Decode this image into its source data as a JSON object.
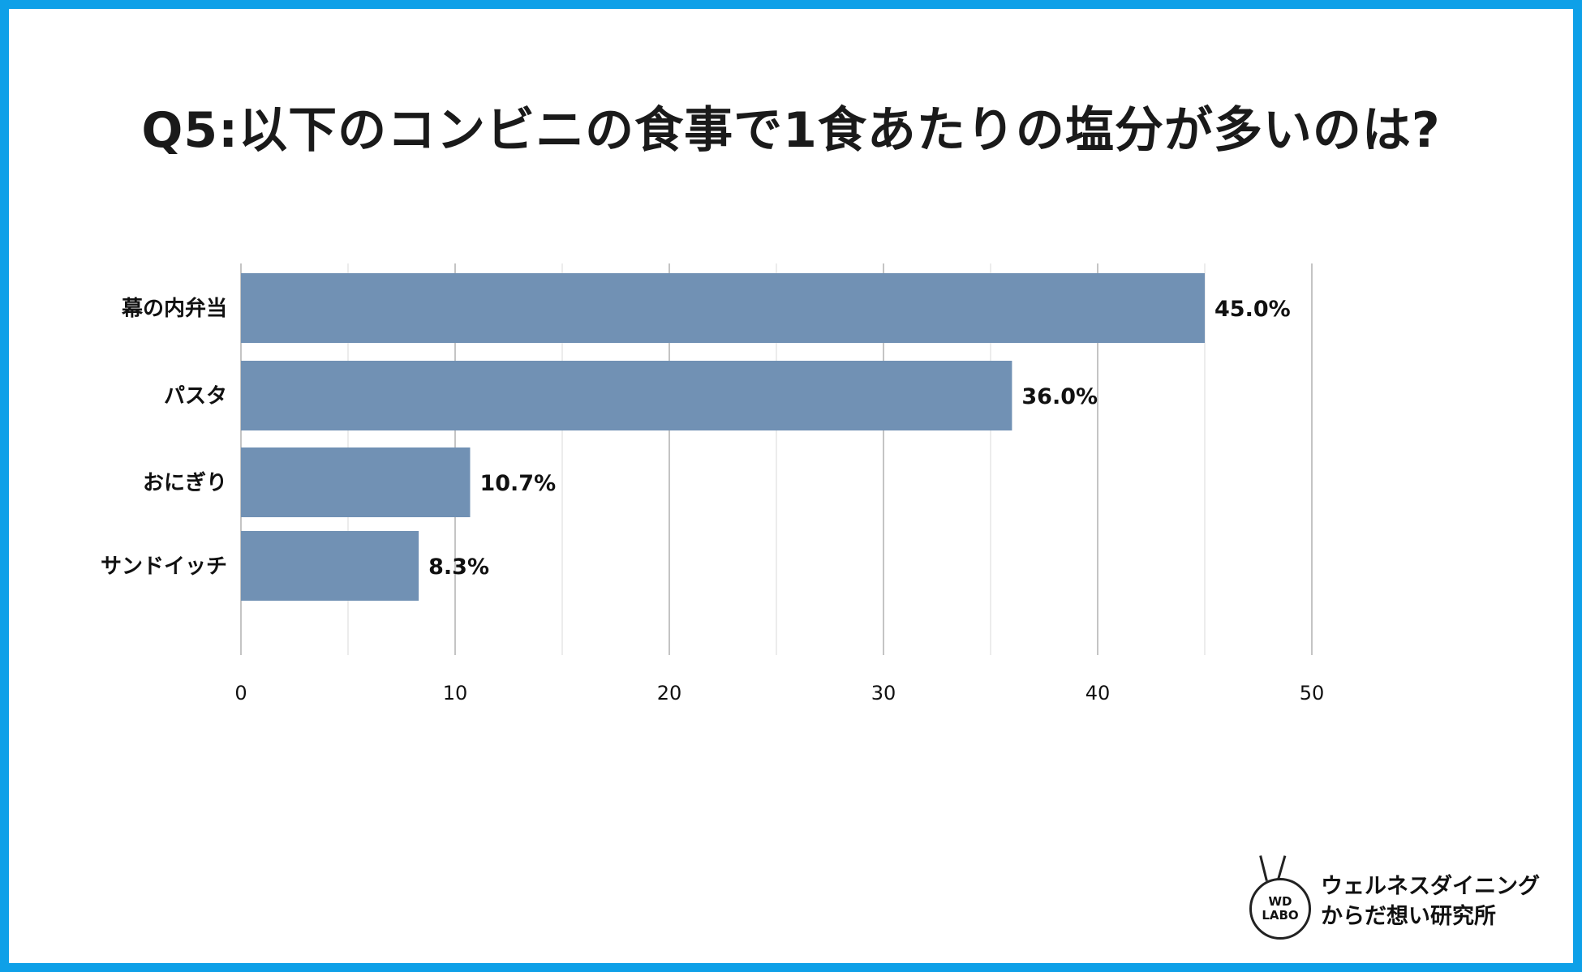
{
  "title": "Q5:以下のコンビニの食事で1食あたりの塩分が多いのは?",
  "colors": {
    "frame": "#0ea0e8",
    "bar": "#7191b4"
  },
  "chart_data": {
    "type": "bar",
    "orientation": "horizontal",
    "categories": [
      "幕の内弁当",
      "パスタ",
      "おにぎり",
      "サンドイッチ"
    ],
    "values": [
      45.0,
      36.0,
      10.7,
      8.3
    ],
    "value_labels": [
      "45.0%",
      "36.0%",
      "10.7%",
      "8.3%"
    ],
    "xlim": [
      0,
      50
    ],
    "xticks": [
      "0",
      "10",
      "20",
      "30",
      "40",
      "50"
    ],
    "grid": true,
    "legend": "none"
  },
  "logo": {
    "badge_line1": "WD",
    "badge_line2": "LABO",
    "name_line1": "ウェルネスダイニング",
    "name_line2": "からだ想い研究所"
  }
}
